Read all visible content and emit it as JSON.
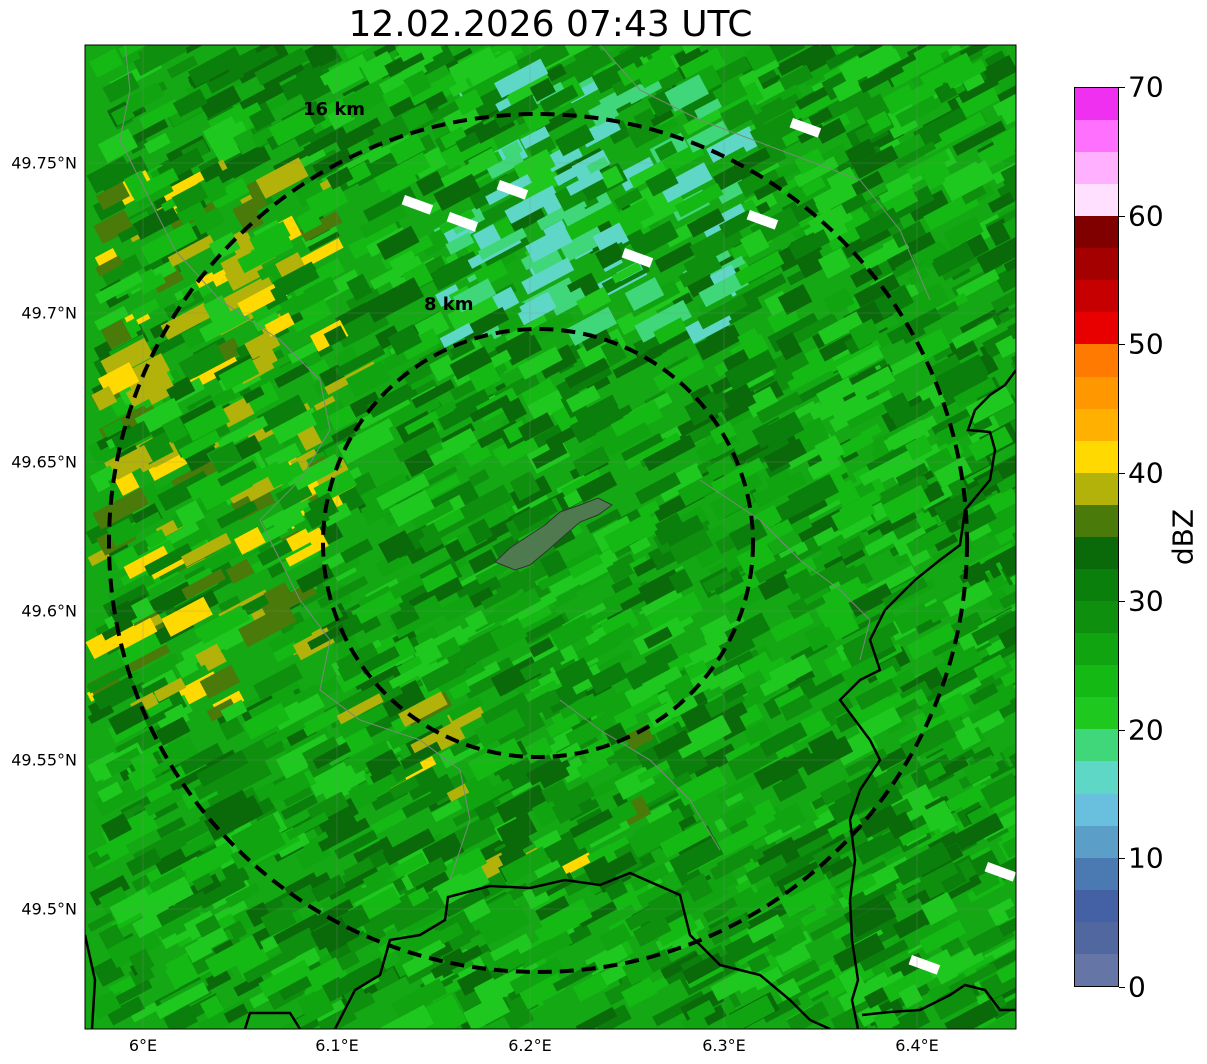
{
  "title": "12.02.2026 07:43 UTC",
  "map": {
    "lon_range": [
      5.97,
      6.45
    ],
    "lat_range": [
      49.46,
      49.79
    ],
    "lat_ticks": [
      {
        "value": 49.75,
        "label": "49.75°N"
      },
      {
        "value": 49.7,
        "label": "49.7°N"
      },
      {
        "value": 49.65,
        "label": "49.65°N"
      },
      {
        "value": 49.6,
        "label": "49.6°N"
      },
      {
        "value": 49.55,
        "label": "49.55°N"
      },
      {
        "value": 49.5,
        "label": "49.5°N"
      }
    ],
    "lon_ticks": [
      {
        "value": 6.0,
        "label": "6°E"
      },
      {
        "value": 6.1,
        "label": "6.1°E"
      },
      {
        "value": 6.2,
        "label": "6.2°E"
      },
      {
        "value": 6.3,
        "label": "6.3°E"
      },
      {
        "value": 6.4,
        "label": "6.4°E"
      }
    ],
    "range_rings": [
      {
        "label": "8 km",
        "radius_km": 8
      },
      {
        "label": "16 km",
        "radius_km": 16
      }
    ],
    "radar_center": {
      "lon": 6.2,
      "lat": 49.622
    },
    "field": "reflectivity"
  },
  "colorbar": {
    "label": "dBZ",
    "min": 0,
    "max": 70,
    "tick_labels": [
      "0",
      "10",
      "20",
      "30",
      "40",
      "50",
      "60",
      "70"
    ],
    "colors": [
      "#6475a6",
      "#5067a0",
      "#4561a6",
      "#4b7ab2",
      "#5b9fc8",
      "#68c0de",
      "#5fd7c7",
      "#3fd77a",
      "#1ec81e",
      "#14b914",
      "#10a410",
      "#0e900e",
      "#0b7f0b",
      "#0a6a0a",
      "#4a7a0a",
      "#b2b20a",
      "#ffd900",
      "#ffb000",
      "#ff9800",
      "#ff7a00",
      "#e80000",
      "#c60000",
      "#a40000",
      "#800000",
      "#ffe0ff",
      "#ffb0ff",
      "#ff70ff",
      "#f030f0"
    ]
  }
}
